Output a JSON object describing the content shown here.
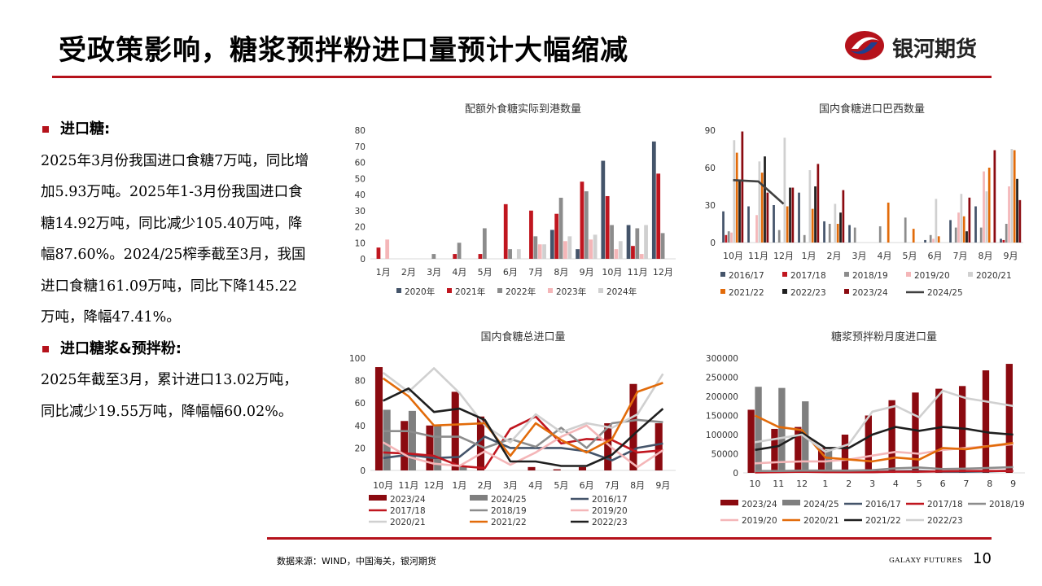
{
  "header": {
    "title": "受政策影响，糖浆预拌粉进口量预计大幅缩减",
    "brand": "银河期货"
  },
  "left": {
    "sections": [
      {
        "heading": "进口糖:",
        "paragraph": "2025年3月份我国进口食糖7万吨，同比增加5.93万吨。2025年1-3月份我国进口食糖14.92万吨，同比减少105.40万吨，降幅87.60%。2024/25榨季截至3月，我国进口食糖161.09万吨，同比下降145.22万吨，降幅47.41%。"
      },
      {
        "heading": "进口糖浆&预拌粉:",
        "paragraph": "2025年截至3月，累计进口13.02万吨，同比减少19.55万吨，降幅幅60.02%。"
      }
    ]
  },
  "footer": {
    "source": "数据来源：WIND，中国海关，银河期货",
    "brand_en": "GALAXY FUTURES",
    "page": "10"
  },
  "colors": {
    "accent": "#b5121b"
  },
  "chart_data": [
    {
      "id": "c1",
      "type": "bar",
      "title": "配额外食糖实际到港数量",
      "categories": [
        "1月",
        "2月",
        "3月",
        "4月",
        "5月",
        "6月",
        "7月",
        "8月",
        "9月",
        "10月",
        "11月",
        "12月"
      ],
      "ylim": [
        0,
        80
      ],
      "yticks": [
        0,
        10,
        20,
        30,
        40,
        50,
        60,
        70,
        80
      ],
      "series": [
        {
          "name": "2020年",
          "color": "#44546a",
          "values": [
            0,
            0,
            0,
            0,
            0,
            0,
            0,
            18,
            6,
            61,
            21,
            73
          ]
        },
        {
          "name": "2021年",
          "color": "#c0161f",
          "values": [
            7,
            0,
            0,
            3,
            3,
            34,
            30,
            28,
            48,
            39,
            8,
            53
          ]
        },
        {
          "name": "2022年",
          "color": "#8c8c8c",
          "values": [
            0,
            0,
            3,
            10,
            19,
            6,
            14,
            38,
            42,
            21,
            19,
            16
          ]
        },
        {
          "name": "2023年",
          "color": "#f4b6b8",
          "values": [
            12,
            0,
            0,
            0,
            0,
            0,
            9,
            11,
            12,
            6,
            3,
            0
          ]
        },
        {
          "name": "2024年",
          "color": "#d0d0d0",
          "values": [
            0,
            0,
            0,
            0,
            0,
            6,
            9,
            14,
            15,
            11,
            21,
            0
          ]
        }
      ]
    },
    {
      "id": "c2",
      "type": "bar",
      "title": "国内食糖进口巴西数量",
      "categories": [
        "10月",
        "11月",
        "12月",
        "1月",
        "2月",
        "3月",
        "4月",
        "5月",
        "6月",
        "7月",
        "8月",
        "9月"
      ],
      "ylim": [
        0,
        90
      ],
      "yticks": [
        0,
        30,
        60,
        90
      ],
      "series": [
        {
          "name": "2016/17",
          "color": "#44546a",
          "values": [
            25,
            29,
            30,
            40,
            17,
            14,
            0,
            0,
            2,
            18,
            29,
            3
          ]
        },
        {
          "name": "2017/18",
          "color": "#c0161f",
          "values": [
            6,
            0,
            0,
            0,
            0,
            0,
            0,
            0,
            0,
            0,
            0,
            2
          ]
        },
        {
          "name": "2018/19",
          "color": "#8c8c8c",
          "values": [
            9,
            0,
            10,
            6,
            15,
            12,
            13,
            20,
            6,
            12,
            12,
            15
          ]
        },
        {
          "name": "2019/20",
          "color": "#f4b6b8",
          "values": [
            8,
            22,
            0,
            0,
            0,
            0,
            0,
            0,
            3,
            24,
            57,
            45
          ]
        },
        {
          "name": "2020/21",
          "color": "#d0d0d0",
          "values": [
            82,
            65,
            84,
            58,
            31,
            0,
            0,
            0,
            35,
            39,
            41,
            75
          ]
        },
        {
          "name": "2021/22",
          "color": "#e26b0a",
          "values": [
            72,
            56,
            29,
            27,
            15,
            0,
            32,
            11,
            5,
            21,
            60,
            74
          ]
        },
        {
          "name": "2022/23",
          "color": "#1f1f1f",
          "values": [
            50,
            69,
            44,
            45,
            24,
            0,
            0,
            0,
            0,
            9,
            0,
            51
          ]
        },
        {
          "name": "2023/24",
          "color": "#8b0a10",
          "values": [
            89,
            40,
            44,
            63,
            42,
            0,
            0,
            0,
            0,
            36,
            74,
            34
          ]
        },
        {
          "name": "2024/25",
          "color": "#404040",
          "type": "line",
          "values": [
            50,
            49,
            31,
            null,
            null,
            null,
            null,
            null,
            null,
            null,
            null,
            null
          ]
        }
      ]
    },
    {
      "id": "c3",
      "type": "bar+line",
      "title": "国内食糖总进口量",
      "categories": [
        "10月",
        "11月",
        "12月",
        "1月",
        "2月",
        "3月",
        "4月",
        "5月",
        "6月",
        "7月",
        "8月",
        "9月"
      ],
      "ylim": [
        0,
        100
      ],
      "yticks": [
        0,
        20,
        40,
        60,
        80,
        100
      ],
      "series": [
        {
          "name": "2023/24",
          "type": "bar",
          "color": "#8b0a10",
          "values": [
            92,
            44,
            40,
            70,
            48,
            0,
            3,
            1,
            3,
            42,
            77,
            42
          ]
        },
        {
          "name": "2024/25",
          "type": "bar",
          "color": "#7f7f7f",
          "values": [
            54,
            53,
            40,
            4,
            0,
            0,
            0,
            0,
            0,
            0,
            0,
            0
          ]
        },
        {
          "name": "2016/17",
          "type": "line",
          "color": "#44546a",
          "values": [
            11,
            14,
            11,
            12,
            30,
            20,
            20,
            20,
            17,
            9,
            20,
            24
          ]
        },
        {
          "name": "2017/18",
          "type": "line",
          "color": "#c0161f",
          "values": [
            16,
            15,
            13,
            4,
            2,
            37,
            48,
            24,
            28,
            27,
            16,
            18
          ]
        },
        {
          "name": "2018/19",
          "type": "line",
          "color": "#8c8c8c",
          "values": [
            35,
            35,
            30,
            30,
            20,
            28,
            21,
            38,
            20,
            42,
            45,
            43
          ]
        },
        {
          "name": "2019/20",
          "type": "line",
          "color": "#f4b6b8",
          "values": [
            25,
            12,
            6,
            4,
            17,
            5,
            16,
            30,
            40,
            20,
            3,
            18
          ]
        },
        {
          "name": "2020/21",
          "type": "line",
          "color": "#d0d0d0",
          "values": [
            87,
            70,
            91,
            69,
            40,
            25,
            50,
            34,
            42,
            38,
            50,
            86
          ]
        },
        {
          "name": "2021/22",
          "type": "line",
          "color": "#e26b0a",
          "values": [
            82,
            66,
            40,
            41,
            42,
            13,
            42,
            27,
            16,
            28,
            70,
            78
          ]
        },
        {
          "name": "2022/23",
          "type": "line",
          "color": "#1f1f1f",
          "values": [
            62,
            73,
            52,
            55,
            45,
            8,
            8,
            4,
            4,
            14,
            35,
            55
          ]
        }
      ]
    },
    {
      "id": "c4",
      "type": "bar+line",
      "title": "糖浆预拌粉月度进口量",
      "categories": [
        "10",
        "11",
        "12",
        "1",
        "2",
        "3",
        "4",
        "5",
        "6",
        "7",
        "8",
        "9"
      ],
      "ylim": [
        0,
        300000
      ],
      "yticks": [
        0,
        50000,
        100000,
        150000,
        200000,
        250000,
        300000
      ],
      "series": [
        {
          "name": "2023/24",
          "type": "bar",
          "color": "#8b0a10",
          "values": [
            165000,
            115000,
            120000,
            65000,
            100000,
            150000,
            190000,
            210000,
            220000,
            227000,
            268000,
            285000
          ]
        },
        {
          "name": "2024/25",
          "type": "bar",
          "color": "#7f7f7f",
          "values": [
            225000,
            222000,
            187000,
            60000,
            0,
            0,
            0,
            0,
            0,
            0,
            0,
            0
          ]
        },
        {
          "name": "2016/17",
          "type": "line",
          "color": "#44546a",
          "values": [
            2000,
            3000,
            4000,
            3000,
            2000,
            2000,
            4000,
            5000,
            3000,
            3000,
            4000,
            6000
          ]
        },
        {
          "name": "2017/18",
          "type": "line",
          "color": "#c0161f",
          "values": [
            1000,
            2000,
            3000,
            2000,
            2000,
            2000,
            3000,
            3000,
            4000,
            5000,
            5000,
            5000
          ]
        },
        {
          "name": "2018/19",
          "type": "line",
          "color": "#8c8c8c",
          "values": [
            5000,
            5000,
            6000,
            6000,
            6000,
            7000,
            12000,
            14000,
            10000,
            11000,
            13000,
            15000
          ]
        },
        {
          "name": "2019/20",
          "type": "line",
          "color": "#f4b6b8",
          "values": [
            25000,
            28000,
            30000,
            30000,
            35000,
            45000,
            55000,
            50000,
            60000,
            65000,
            70000,
            75000
          ]
        },
        {
          "name": "2020/21",
          "type": "line",
          "color": "#e26b0a",
          "values": [
            150000,
            120000,
            112000,
            40000,
            35000,
            30000,
            40000,
            35000,
            65000,
            62000,
            70000,
            78000
          ]
        },
        {
          "name": "2021/22",
          "type": "line",
          "color": "#1f1f1f",
          "values": [
            60000,
            70000,
            105000,
            65000,
            65000,
            100000,
            120000,
            110000,
            120000,
            115000,
            105000,
            100000
          ]
        },
        {
          "name": "2022/23",
          "type": "line",
          "color": "#d0d0d0",
          "values": [
            80000,
            90000,
            100000,
            55000,
            75000,
            160000,
            175000,
            145000,
            215000,
            195000,
            185000,
            175000
          ]
        }
      ]
    }
  ]
}
